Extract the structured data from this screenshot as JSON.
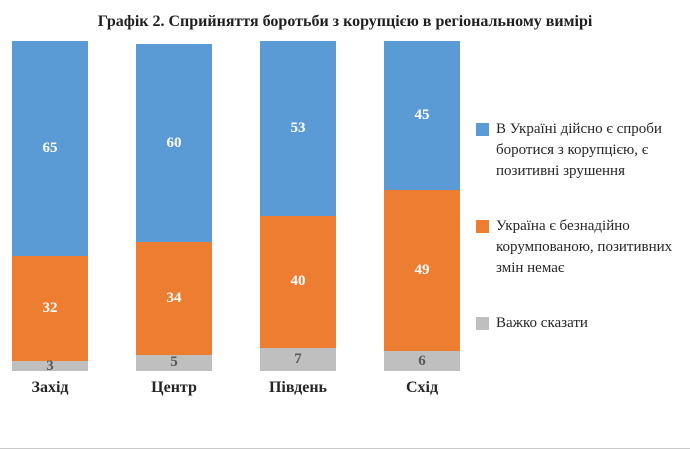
{
  "title": "Графік 2. Сприйняття боротьби з корупцією в регіональному вимірі",
  "chart_data": {
    "type": "bar",
    "stacked": true,
    "orientation": "vertical",
    "categories": [
      "Захід",
      "Центр",
      "Південь",
      "Схід"
    ],
    "series": [
      {
        "name": "В Україні дійсно є спроби боротися з корупцією, є позитивні зрушення",
        "color": "#5b9bd5",
        "label_color": "#ffffff",
        "values": [
          65,
          60,
          53,
          45
        ]
      },
      {
        "name": "Україна є безнадійно корумпованою, позитивних змін немає",
        "color": "#ed7d31",
        "label_color": "#ffffff",
        "values": [
          32,
          34,
          40,
          49
        ]
      },
      {
        "name": "Важко сказати",
        "color": "#bfbfbf",
        "label_color": "#595959",
        "values": [
          3,
          5,
          7,
          6
        ]
      }
    ],
    "ylim": [
      0,
      100
    ],
    "grid": false,
    "legend_position": "right",
    "data_labels": true
  }
}
